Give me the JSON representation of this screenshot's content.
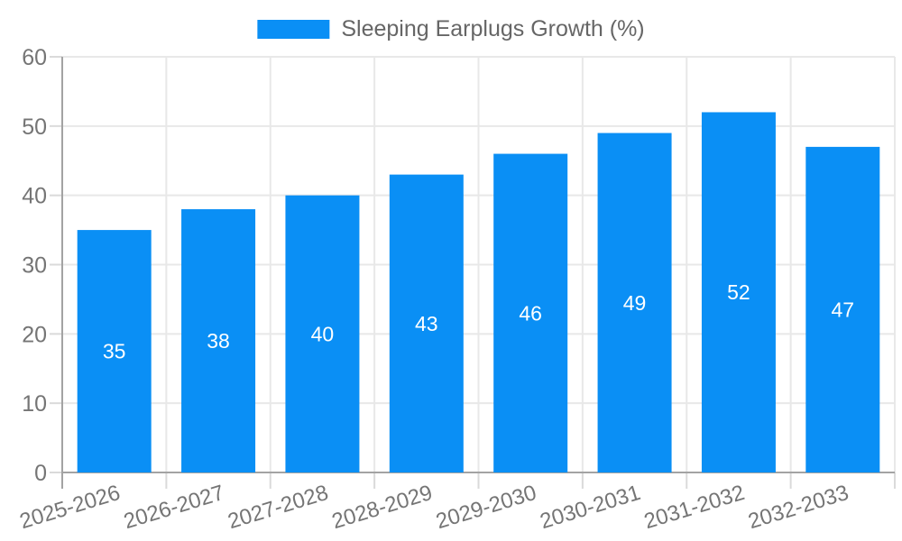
{
  "legend": {
    "label": "Sleeping Earplugs Growth (%)"
  },
  "chart_data": {
    "type": "bar",
    "title": "Sleeping Earplugs Growth (%)",
    "categories": [
      "2025-2026",
      "2026-2027",
      "2027-2028",
      "2028-2029",
      "2029-2030",
      "2030-2031",
      "2031-2032",
      "2032-2033"
    ],
    "values": [
      35,
      38,
      40,
      43,
      46,
      49,
      52,
      47
    ],
    "xlabel": "",
    "ylabel": "",
    "ylim": [
      0,
      60
    ],
    "yticks": [
      0,
      10,
      20,
      30,
      40,
      50,
      60
    ],
    "grid": true,
    "legend_position": "top-center",
    "value_labels": "inside-middle",
    "x_label_rotation_deg": -17,
    "colors": {
      "bar": "#0A8FF5",
      "value_label": "#FFFFFF",
      "axis_line": "#A3A3A3",
      "grid_line": "#E8E8E8",
      "tick_line": "#DADADA",
      "axis_text": "#757575",
      "title_text": "#666666",
      "background": "#FFFFFF"
    }
  }
}
